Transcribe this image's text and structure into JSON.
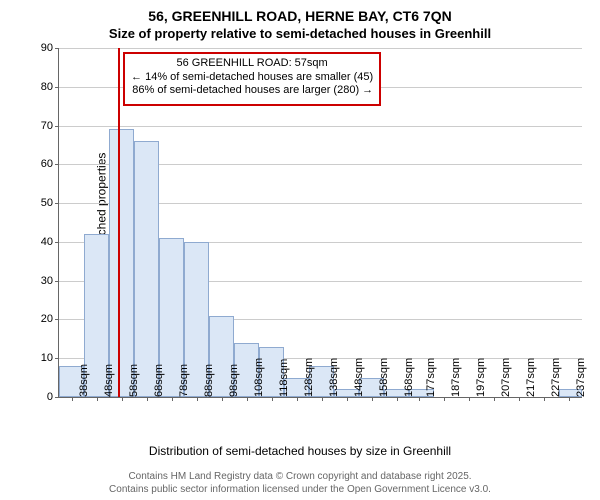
{
  "title_main": "56, GREENHILL ROAD, HERNE BAY, CT6 7QN",
  "title_sub": "Size of property relative to semi-detached houses in Greenhill",
  "ylabel": "Number of semi-detached properties",
  "xlabel": "Distribution of semi-detached houses by size in Greenhill",
  "chart": {
    "type": "histogram",
    "ylim": [
      0,
      90
    ],
    "yticks": [
      0,
      10,
      20,
      30,
      40,
      50,
      60,
      70,
      80,
      90
    ],
    "xtick_labels": [
      "38sqm",
      "48sqm",
      "58sqm",
      "68sqm",
      "78sqm",
      "88sqm",
      "98sqm",
      "108sqm",
      "118sqm",
      "128sqm",
      "138sqm",
      "148sqm",
      "158sqm",
      "168sqm",
      "177sqm",
      "187sqm",
      "197sqm",
      "207sqm",
      "217sqm",
      "227sqm",
      "237sqm"
    ],
    "xtick_positions_sqm": [
      38,
      48,
      58,
      68,
      78,
      88,
      98,
      108,
      118,
      128,
      138,
      148,
      158,
      168,
      177,
      187,
      197,
      207,
      217,
      227,
      237
    ],
    "x_range_sqm": [
      33,
      242
    ],
    "bars": [
      {
        "x_start": 33,
        "x_end": 43,
        "value": 8
      },
      {
        "x_start": 43,
        "x_end": 53,
        "value": 42
      },
      {
        "x_start": 53,
        "x_end": 63,
        "value": 69
      },
      {
        "x_start": 63,
        "x_end": 73,
        "value": 66
      },
      {
        "x_start": 73,
        "x_end": 83,
        "value": 41
      },
      {
        "x_start": 83,
        "x_end": 93,
        "value": 40
      },
      {
        "x_start": 93,
        "x_end": 103,
        "value": 21
      },
      {
        "x_start": 103,
        "x_end": 113,
        "value": 14
      },
      {
        "x_start": 113,
        "x_end": 123,
        "value": 13
      },
      {
        "x_start": 123,
        "x_end": 133,
        "value": 5
      },
      {
        "x_start": 133,
        "x_end": 143,
        "value": 8
      },
      {
        "x_start": 143,
        "x_end": 153,
        "value": 2
      },
      {
        "x_start": 153,
        "x_end": 163,
        "value": 5
      },
      {
        "x_start": 163,
        "x_end": 173,
        "value": 2
      },
      {
        "x_start": 173,
        "x_end": 183,
        "value": 2
      },
      {
        "x_start": 183,
        "x_end": 193,
        "value": 0
      },
      {
        "x_start": 193,
        "x_end": 203,
        "value": 0
      },
      {
        "x_start": 203,
        "x_end": 213,
        "value": 0
      },
      {
        "x_start": 213,
        "x_end": 223,
        "value": 0
      },
      {
        "x_start": 223,
        "x_end": 233,
        "value": 0
      },
      {
        "x_start": 233,
        "x_end": 242,
        "value": 2
      }
    ],
    "bar_fill": "#dbe7f6",
    "bar_stroke": "#8faad0",
    "grid_color": "#cccccc",
    "background_color": "#ffffff",
    "marker_sqm": 57,
    "marker_color": "#cc0000",
    "tick_fontsize": 11,
    "label_fontsize": 12,
    "title_fontsize": 14
  },
  "annotation": {
    "line1": "56 GREENHILL ROAD: 57sqm",
    "line2": "← 14% of semi-detached houses are smaller (45)",
    "line3": "86% of semi-detached houses are larger (280) →",
    "border_color": "#cc0000",
    "border_width": 2,
    "top_y_value": 89,
    "height_y_value": 14
  },
  "footer_line1": "Contains HM Land Registry data © Crown copyright and database right 2025.",
  "footer_line2": "Contains public sector information licensed under the Open Government Licence v3.0."
}
